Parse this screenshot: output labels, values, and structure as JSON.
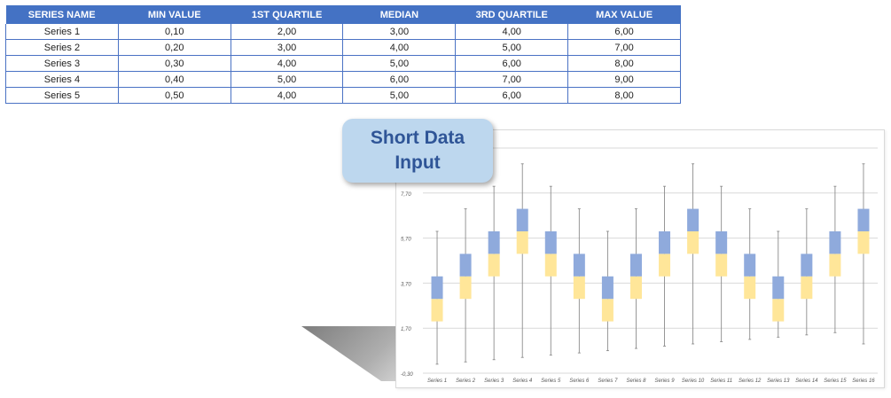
{
  "table": {
    "headers": [
      "SERIES NAME",
      "MIN VALUE",
      "1ST QUARTILE",
      "MEDIAN",
      "3RD QUARTILE",
      "MAX VALUE"
    ],
    "rows": [
      [
        "Series 1",
        "0,10",
        "2,00",
        "3,00",
        "4,00",
        "6,00"
      ],
      [
        "Series 2",
        "0,20",
        "3,00",
        "4,00",
        "5,00",
        "7,00"
      ],
      [
        "Series 3",
        "0,30",
        "4,00",
        "5,00",
        "6,00",
        "8,00"
      ],
      [
        "Series 4",
        "0,40",
        "5,00",
        "6,00",
        "7,00",
        "9,00"
      ],
      [
        "Series 5",
        "0,50",
        "4,00",
        "5,00",
        "6,00",
        "8,00"
      ]
    ]
  },
  "callout": {
    "text": "Short Data Input"
  },
  "chart_data": {
    "type": "box",
    "title": "",
    "xlabel": "",
    "ylabel": "",
    "ylim": [
      -0.3,
      9.7
    ],
    "y_ticks": [
      "-0,30",
      "1,70",
      "3,70",
      "5,70",
      "7,70"
    ],
    "y_tick_values": [
      -0.3,
      1.7,
      3.7,
      5.7,
      7.7
    ],
    "grid": true,
    "colors": {
      "upper_box": "#8faadc",
      "lower_box": "#ffe699",
      "whisker": "#8c8c8c",
      "grid": "#d9d9d9"
    },
    "categories": [
      "Series 1",
      "Series 2",
      "Series 3",
      "Series 4",
      "Series 5",
      "Series 6",
      "Series 7",
      "Series 8",
      "Series 9",
      "Series 10",
      "Series 11",
      "Series 12",
      "Series 13",
      "Series 14",
      "Series 15",
      "Series 16"
    ],
    "series": [
      {
        "min": 0.1,
        "q1": 2.0,
        "median": 3.0,
        "q3": 4.0,
        "max": 6.0
      },
      {
        "min": 0.2,
        "q1": 3.0,
        "median": 4.0,
        "q3": 5.0,
        "max": 7.0
      },
      {
        "min": 0.3,
        "q1": 4.0,
        "median": 5.0,
        "q3": 6.0,
        "max": 8.0
      },
      {
        "min": 0.4,
        "q1": 5.0,
        "median": 6.0,
        "q3": 7.0,
        "max": 9.0
      },
      {
        "min": 0.5,
        "q1": 4.0,
        "median": 5.0,
        "q3": 6.0,
        "max": 8.0
      },
      {
        "min": 0.6,
        "q1": 3.0,
        "median": 4.0,
        "q3": 5.0,
        "max": 7.0
      },
      {
        "min": 0.7,
        "q1": 2.0,
        "median": 3.0,
        "q3": 4.0,
        "max": 6.0
      },
      {
        "min": 0.8,
        "q1": 3.0,
        "median": 4.0,
        "q3": 5.0,
        "max": 7.0
      },
      {
        "min": 0.9,
        "q1": 4.0,
        "median": 5.0,
        "q3": 6.0,
        "max": 8.0
      },
      {
        "min": 1.0,
        "q1": 5.0,
        "median": 6.0,
        "q3": 7.0,
        "max": 9.0
      },
      {
        "min": 1.1,
        "q1": 4.0,
        "median": 5.0,
        "q3": 6.0,
        "max": 8.0
      },
      {
        "min": 1.2,
        "q1": 3.0,
        "median": 4.0,
        "q3": 5.0,
        "max": 7.0
      },
      {
        "min": 1.3,
        "q1": 2.0,
        "median": 3.0,
        "q3": 4.0,
        "max": 6.0
      },
      {
        "min": 1.4,
        "q1": 3.0,
        "median": 4.0,
        "q3": 5.0,
        "max": 7.0
      },
      {
        "min": 1.5,
        "q1": 4.0,
        "median": 5.0,
        "q3": 6.0,
        "max": 8.0
      },
      {
        "min": 1.0,
        "q1": 5.0,
        "median": 6.0,
        "q3": 7.0,
        "max": 9.0
      }
    ]
  }
}
